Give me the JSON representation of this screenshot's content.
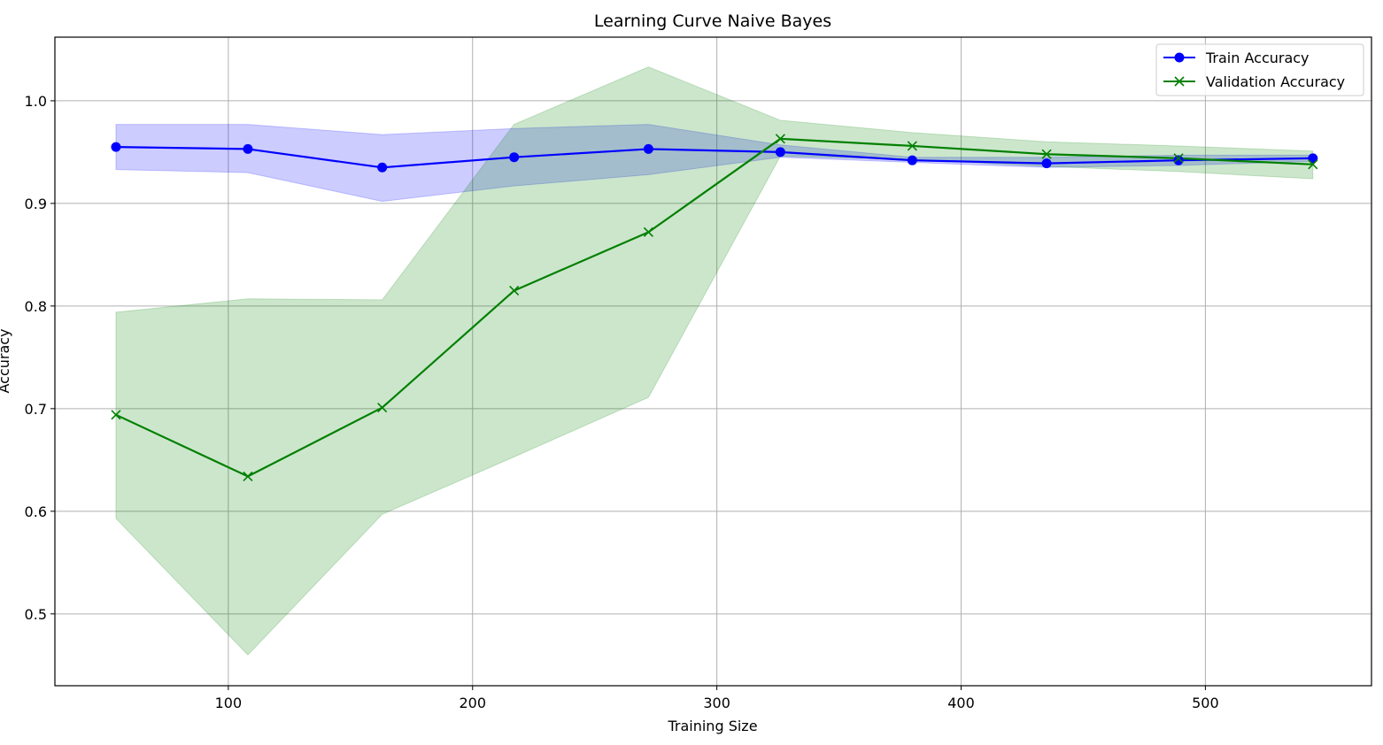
{
  "chart_data": {
    "type": "line",
    "title": "Learning Curve Naive Bayes",
    "xlabel": "Training Size",
    "ylabel": "Accuracy",
    "xlim": [
      29,
      568
    ],
    "ylim": [
      0.43,
      1.062
    ],
    "xticks": [
      100,
      200,
      300,
      400,
      500
    ],
    "yticks": [
      0.5,
      0.6,
      0.7,
      0.8,
      0.9,
      1.0
    ],
    "xtick_labels": [
      "100",
      "200",
      "300",
      "400",
      "500"
    ],
    "ytick_labels": [
      "0.5",
      "0.6",
      "0.7",
      "0.8",
      "0.9",
      "1.0"
    ],
    "grid": true,
    "legend_position": "top-right",
    "x": [
      54,
      108,
      163,
      217,
      272,
      326,
      380,
      435,
      489,
      544
    ],
    "series": [
      {
        "name": "Train Accuracy",
        "marker": "circle",
        "color": "#0000ff",
        "band_color": "#0000ff",
        "values": [
          0.955,
          0.953,
          0.935,
          0.945,
          0.953,
          0.95,
          0.942,
          0.939,
          0.942,
          0.944
        ],
        "band_upper": [
          0.977,
          0.977,
          0.967,
          0.973,
          0.977,
          0.957,
          0.945,
          0.945,
          0.947,
          0.947
        ],
        "band_lower": [
          0.933,
          0.93,
          0.902,
          0.917,
          0.928,
          0.945,
          0.94,
          0.935,
          0.937,
          0.941
        ]
      },
      {
        "name": "Validation Accuracy",
        "marker": "x",
        "color": "#008000",
        "band_color": "#008000",
        "values": [
          0.694,
          0.634,
          0.701,
          0.815,
          0.872,
          0.963,
          0.956,
          0.948,
          0.944,
          0.938
        ],
        "band_upper": [
          0.794,
          0.807,
          0.806,
          0.977,
          1.033,
          0.981,
          0.969,
          0.96,
          0.956,
          0.951
        ],
        "band_lower": [
          0.593,
          0.46,
          0.597,
          0.653,
          0.711,
          0.946,
          0.943,
          0.936,
          0.931,
          0.924
        ]
      }
    ]
  }
}
